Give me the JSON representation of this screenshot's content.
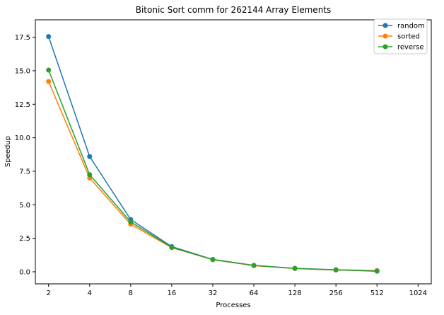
{
  "chart_data": {
    "type": "line",
    "title": "Bitonic Sort comm for 262144 Array Elements",
    "xlabel": "Processes",
    "ylabel": "Speedup",
    "x_scale": "log2",
    "x": [
      2,
      4,
      8,
      16,
      32,
      64,
      128,
      256,
      512
    ],
    "x_ticks": [
      "2",
      "4",
      "8",
      "16",
      "32",
      "64",
      "128",
      "256",
      "512",
      "1024"
    ],
    "y_ticks": [
      "0.0",
      "2.5",
      "5.0",
      "7.5",
      "10.0",
      "12.5",
      "15.0",
      "17.5"
    ],
    "ylim": [
      -0.9,
      18.8
    ],
    "grid": false,
    "legend_position": "top-right",
    "series": [
      {
        "name": "random",
        "color": "#1f77b4",
        "values": [
          17.55,
          8.6,
          3.9,
          1.88,
          0.92,
          0.48,
          0.26,
          0.15,
          0.09
        ]
      },
      {
        "name": "sorted",
        "color": "#ff7f0e",
        "values": [
          14.2,
          7.0,
          3.55,
          1.8,
          0.9,
          0.46,
          0.25,
          0.13,
          0.07
        ]
      },
      {
        "name": "reverse",
        "color": "#2ca02c",
        "values": [
          15.05,
          7.25,
          3.72,
          1.83,
          0.91,
          0.47,
          0.25,
          0.14,
          0.04
        ]
      }
    ]
  }
}
